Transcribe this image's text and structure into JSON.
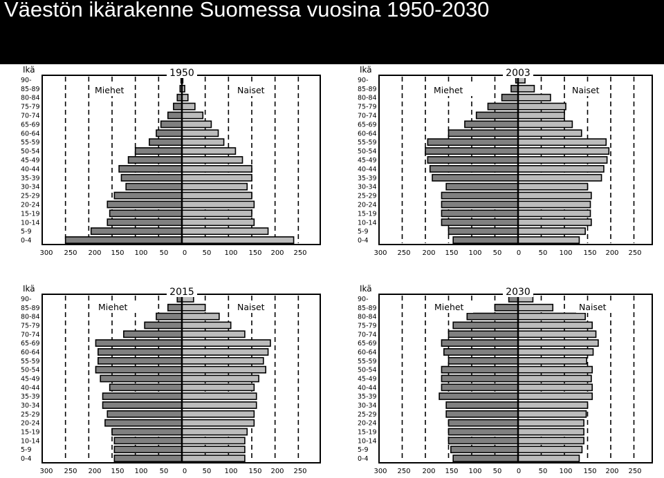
{
  "title": "Väestön ikärakenne Suomessa vuosina 1950-2030",
  "age_axis_label": "Ikä",
  "men_label": "Miehet",
  "women_label": "Naiset",
  "age_groups": [
    "0-4",
    "5-9",
    "10-14",
    "15-19",
    "20-24",
    "25-29",
    "30-34",
    "35-39",
    "40-44",
    "45-49",
    "50-54",
    "55-59",
    "60-64",
    "65-69",
    "70-74",
    "75-79",
    "80-84",
    "85-89",
    "90-"
  ],
  "x_ticks": [
    "300",
    "250",
    "200",
    "150",
    "100",
    "50",
    "0",
    "50",
    "100",
    "150",
    "200",
    "250"
  ],
  "colors": {
    "men": "#808080",
    "women": "#bcbcbc",
    "outline": "#000000"
  },
  "chart_data": [
    {
      "type": "bar",
      "title": "1950",
      "categories": [
        "0-4",
        "5-9",
        "10-14",
        "15-19",
        "20-24",
        "25-29",
        "30-34",
        "35-39",
        "40-44",
        "45-49",
        "50-54",
        "55-59",
        "60-64",
        "65-69",
        "70-74",
        "75-79",
        "80-84",
        "85-89",
        "90-"
      ],
      "series": [
        {
          "name": "Miehet",
          "values": [
            250,
            195,
            160,
            155,
            160,
            145,
            120,
            130,
            135,
            115,
            100,
            70,
            55,
            45,
            30,
            18,
            10,
            4,
            2
          ]
        },
        {
          "name": "Naiset",
          "values": [
            240,
            185,
            155,
            150,
            155,
            150,
            140,
            150,
            150,
            130,
            115,
            90,
            78,
            63,
            45,
            28,
            13,
            6,
            2
          ]
        }
      ],
      "xlim": [
        -300,
        250
      ]
    },
    {
      "type": "bar",
      "title": "2003",
      "categories": [
        "0-4",
        "5-9",
        "10-14",
        "15-19",
        "20-24",
        "25-29",
        "30-34",
        "35-39",
        "40-44",
        "45-49",
        "50-54",
        "55-59",
        "60-64",
        "65-69",
        "70-74",
        "75-79",
        "80-84",
        "85-89",
        "90-"
      ],
      "series": [
        {
          "name": "Miehet",
          "values": [
            140,
            150,
            165,
            165,
            165,
            165,
            155,
            185,
            190,
            195,
            200,
            195,
            150,
            115,
            90,
            65,
            35,
            15,
            5
          ]
        },
        {
          "name": "Naiset",
          "values": [
            132,
            145,
            158,
            156,
            156,
            158,
            150,
            180,
            185,
            192,
            196,
            190,
            137,
            117,
            100,
            103,
            70,
            35,
            15
          ]
        }
      ],
      "xlim": [
        -300,
        250
      ]
    },
    {
      "type": "bar",
      "title": "2015",
      "categories": [
        "0-4",
        "5-9",
        "10-14",
        "15-19",
        "20-24",
        "25-29",
        "30-34",
        "35-39",
        "40-44",
        "45-49",
        "50-54",
        "55-59",
        "60-64",
        "65-69",
        "70-74",
        "75-79",
        "80-84",
        "85-89",
        "90-"
      ],
      "series": [
        {
          "name": "Miehet",
          "values": [
            145,
            145,
            145,
            150,
            165,
            160,
            170,
            170,
            155,
            175,
            185,
            180,
            180,
            185,
            125,
            80,
            55,
            30,
            10
          ]
        },
        {
          "name": "Naiset",
          "values": [
            135,
            135,
            135,
            140,
            155,
            155,
            160,
            160,
            155,
            165,
            180,
            175,
            185,
            190,
            135,
            105,
            80,
            50,
            25
          ]
        }
      ],
      "xlim": [
        -300,
        250
      ]
    },
    {
      "type": "bar",
      "title": "2030",
      "categories": [
        "0-4",
        "5-9",
        "10-14",
        "15-19",
        "20-24",
        "25-29",
        "30-34",
        "35-39",
        "40-44",
        "45-49",
        "50-54",
        "55-59",
        "60-64",
        "65-69",
        "70-74",
        "75-79",
        "80-84",
        "85-89",
        "90-"
      ],
      "series": [
        {
          "name": "Miehet",
          "values": [
            140,
            145,
            150,
            150,
            150,
            155,
            155,
            170,
            165,
            165,
            165,
            150,
            160,
            165,
            150,
            140,
            110,
            50,
            20
          ]
        },
        {
          "name": "Naiset",
          "values": [
            132,
            138,
            142,
            142,
            142,
            147,
            150,
            160,
            160,
            158,
            160,
            148,
            162,
            173,
            168,
            160,
            145,
            75,
            32
          ]
        }
      ],
      "xlim": [
        -300,
        250
      ]
    }
  ]
}
